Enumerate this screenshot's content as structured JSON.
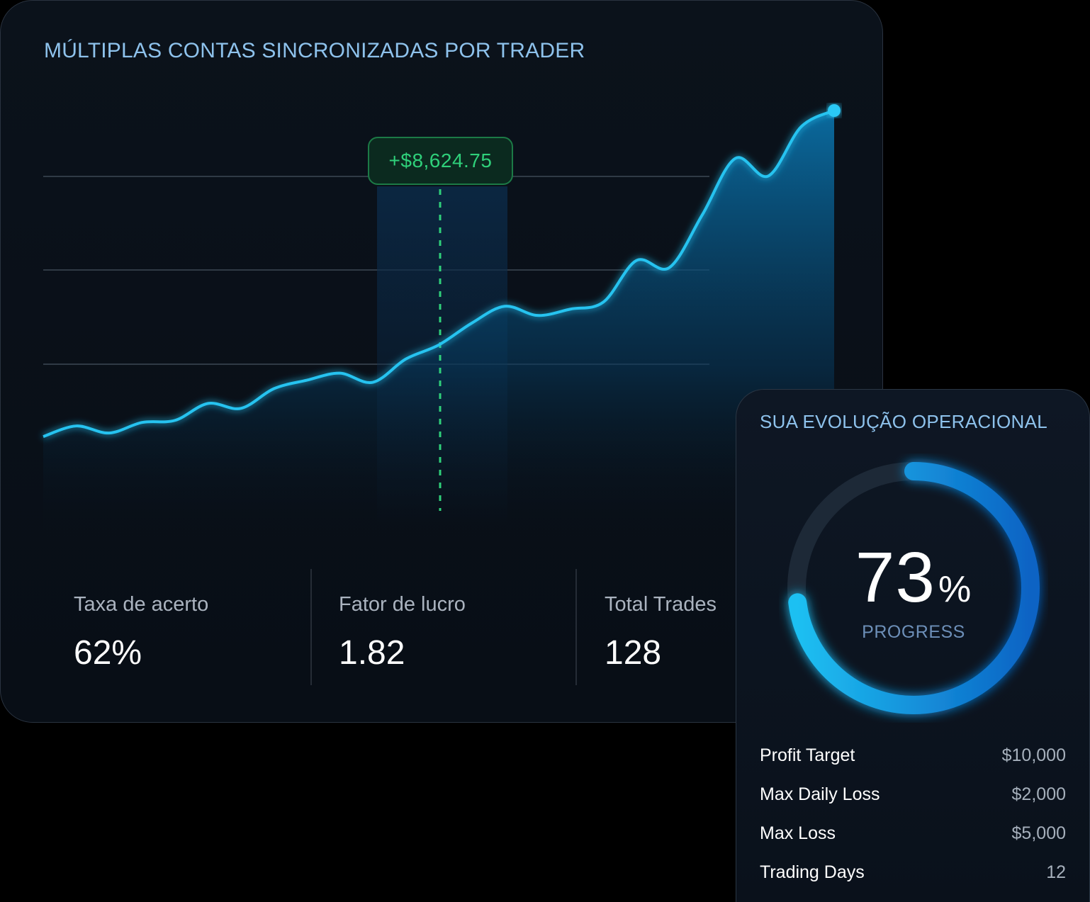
{
  "main_panel": {
    "title": "MÚLTIPLAS CONTAS SINCRONIZADAS POR TRADER",
    "tooltip": "+$8,624.75",
    "stats": [
      {
        "label": "Taxa de acerto",
        "value": "62%"
      },
      {
        "label": "Fator de lucro",
        "value": "1.82"
      },
      {
        "label": "Total Trades",
        "value": "128"
      }
    ]
  },
  "chart_data": {
    "type": "area",
    "title": "MÚLTIPLAS CONTAS SINCRONIZADAS POR TRADER",
    "xlabel": "",
    "ylabel": "",
    "grid": true,
    "highlighted_point": {
      "index": 12,
      "label": "+$8,624.75"
    },
    "series": [
      {
        "values": [
          15,
          30,
          20,
          35,
          38,
          62,
          55,
          83,
          95,
          105,
          92,
          125,
          145,
          176,
          200,
          187,
          196,
          206,
          265,
          255,
          330,
          410,
          385,
          455,
          478
        ]
      }
    ],
    "ylim": [
      0,
      500
    ],
    "colors": {
      "line": "#27c3f0",
      "area_top": "#0a6aa0",
      "highlight": "#1c7a46"
    }
  },
  "side_panel": {
    "title": "SUA EVOLUÇÃO OPERACIONAL",
    "progress": {
      "value": 73,
      "number": "73",
      "suffix": "%",
      "label": "PROGRESS"
    },
    "rules": [
      {
        "label": "Profit Target",
        "value": "$10,000"
      },
      {
        "label": "Max Daily Loss",
        "value": "$2,000"
      },
      {
        "label": "Max Loss",
        "value": "$5,000"
      },
      {
        "label": "Trading Days",
        "value": "12"
      }
    ]
  }
}
